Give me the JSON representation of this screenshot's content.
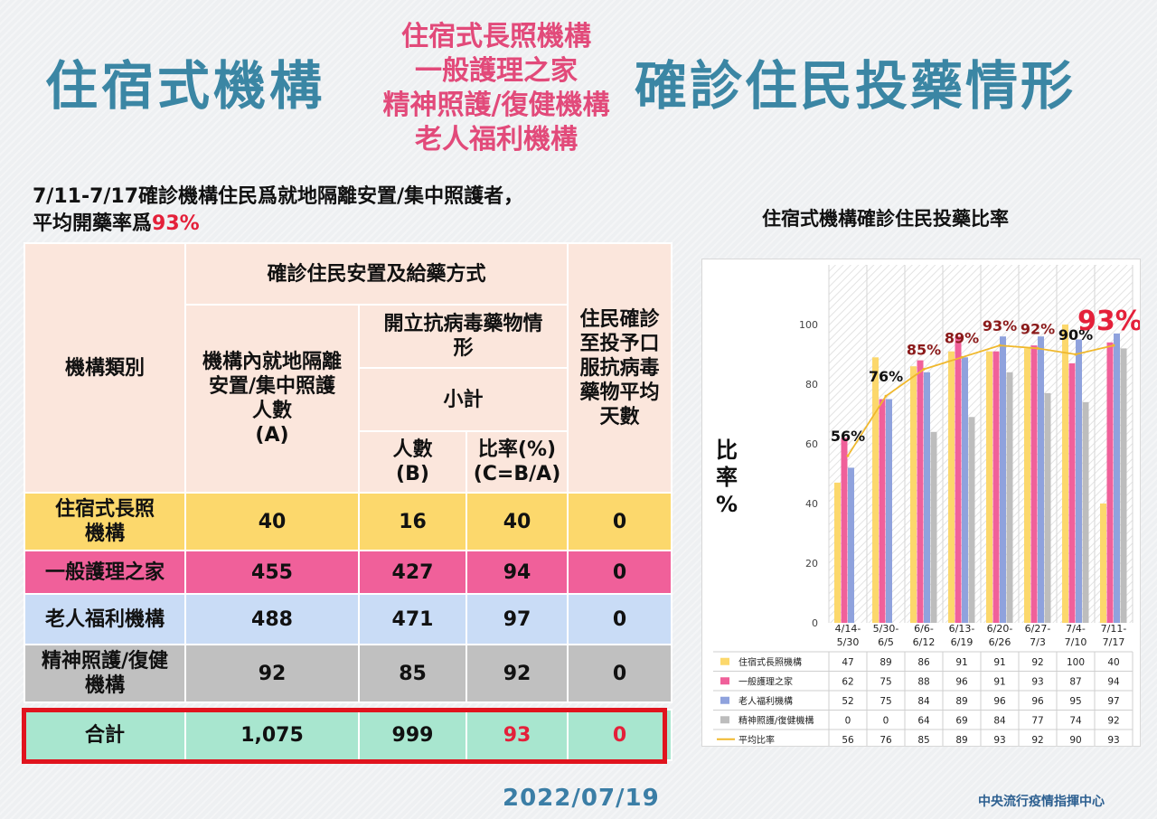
{
  "title": {
    "left": "住宿式機構",
    "middle_lines": [
      "住宿式長照機構",
      "一般護理之家",
      "精神照護/復健機構",
      "老人福利機構"
    ],
    "right": "確診住民投藥情形"
  },
  "subtitle": {
    "line1": "7/11-7/17確診機構住民爲就地隔離安置/集中照護者，",
    "line2_prefix": "平均開藥率爲",
    "line2_value": "93%"
  },
  "table": {
    "headers": {
      "category": "機構類別",
      "group": "確診住民安置及給藥方式",
      "col_a": [
        "機構內就地隔離",
        "安置/集中照護",
        "人數",
        "(A)"
      ],
      "antiviral": [
        "開立抗病毒藥物情",
        "形"
      ],
      "subtotal": "小計",
      "col_b": [
        "人數",
        "(B)"
      ],
      "col_c": [
        "比率(%)",
        "(C=B/A)"
      ],
      "days": [
        "住民確診",
        "至投予口",
        "服抗病毒",
        "藥物平均",
        "天數"
      ]
    },
    "rows": [
      {
        "name_lines": [
          "住宿式長照",
          "機構"
        ],
        "a": "40",
        "b": "16",
        "c": "40",
        "d": "0"
      },
      {
        "name_lines": [
          "一般護理之家"
        ],
        "a": "455",
        "b": "427",
        "c": "94",
        "d": "0"
      },
      {
        "name_lines": [
          "老人福利機構"
        ],
        "a": "488",
        "b": "471",
        "c": "97",
        "d": "0"
      },
      {
        "name_lines": [
          "精神照護/復健",
          "機構"
        ],
        "a": "92",
        "b": "85",
        "c": "92",
        "d": "0"
      }
    ],
    "total": {
      "name": "合計",
      "a": "1,075",
      "b": "999",
      "c": "93",
      "d": "0"
    }
  },
  "chart_title": "住宿式機構確診住民投藥比率",
  "chart_ylabel": [
    "比",
    "率",
    "%"
  ],
  "chart_big_label": "93%",
  "date": "2022/07/19",
  "agency": "中央流行疫情指揮中心",
  "colors": {
    "title_blue": "#3b86a4",
    "title_pink": "#e24a7a",
    "accent_red": "#e4203a",
    "yellow": "#fcd86c",
    "pink": "#f0609a",
    "blue": "#c9dcf6",
    "gray": "#c0c0c0",
    "green": "#a8e6cf",
    "header": "#fbe6dc"
  },
  "chart_data": {
    "type": "bar",
    "categories": [
      [
        "4/14-",
        "5/30"
      ],
      [
        "5/30-",
        "6/5"
      ],
      [
        "6/6-",
        "6/12"
      ],
      [
        "6/13-",
        "6/19"
      ],
      [
        "6/20-",
        "6/26"
      ],
      [
        "6/27-",
        "7/3"
      ],
      [
        "7/4-",
        "7/10"
      ],
      [
        "7/11-",
        "7/17"
      ]
    ],
    "ylim": [
      0,
      100
    ],
    "yticks": [
      0,
      20,
      40,
      60,
      80,
      100
    ],
    "grid": false,
    "series": [
      {
        "name": "住宿式長照機構",
        "type": "bar",
        "color": "#fcd86c",
        "values": [
          47,
          89,
          86,
          91,
          91,
          92,
          100,
          40
        ]
      },
      {
        "name": "一般護理之家",
        "type": "bar",
        "color": "#f0609a",
        "values": [
          62,
          75,
          88,
          96,
          91,
          93,
          87,
          94
        ]
      },
      {
        "name": "老人福利機構",
        "type": "bar",
        "color": "#8fa2dd",
        "values": [
          52,
          75,
          84,
          89,
          96,
          96,
          95,
          97
        ]
      },
      {
        "name": "精神照護/復健機構",
        "type": "bar",
        "color": "#bdbdbd",
        "values": [
          0,
          0,
          64,
          69,
          84,
          77,
          74,
          92
        ]
      },
      {
        "name": "平均比率",
        "type": "line",
        "color": "#f0b82c",
        "values": [
          56,
          76,
          85,
          89,
          93,
          92,
          90,
          93
        ]
      }
    ],
    "point_labels": [
      "56%",
      "76%",
      "85%",
      "89%",
      "93%",
      "92%",
      "90%",
      "93%"
    ],
    "point_label_colors": [
      "#111111",
      "#111111",
      "#8b1a1a",
      "#8b1a1a",
      "#8b1a1a",
      "#8b1a1a",
      "#111111",
      "#e4203a"
    ],
    "data_table": true
  }
}
